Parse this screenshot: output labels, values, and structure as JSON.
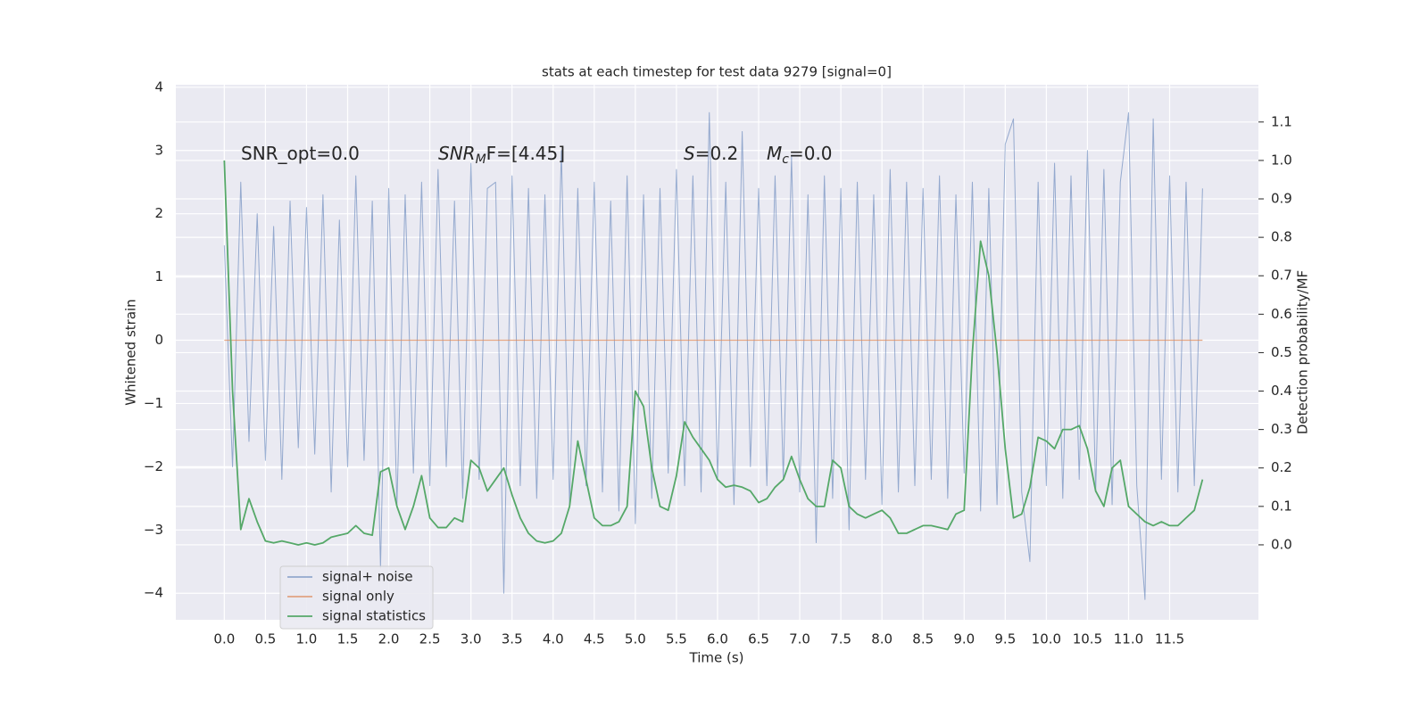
{
  "chart_data": {
    "type": "line",
    "title": "stats at each timestep for test data 9279 [signal=0]",
    "xlabel": "Time (s)",
    "ylabel": "Whitened strain",
    "y2label": "Detection probability/MF",
    "annotations": [
      {
        "base": "SNR_opt=0.0"
      },
      {
        "base": "SNR",
        "sub": "M",
        "tail": "F=[4.45]"
      },
      {
        "base": "S",
        "tail": "=0.2"
      },
      {
        "base": "M",
        "sub": "c",
        "tail": "=0.0"
      }
    ],
    "grid": true,
    "legend": "lower left",
    "xlim": [
      -0.59,
      12.58
    ],
    "ylim": [
      -4.42,
      4.04
    ],
    "y2lim": [
      -0.195,
      1.197
    ],
    "xticks": [
      {
        "value": 0,
        "label": "0.0"
      },
      0.5,
      {
        "value": 1,
        "label": "1.0"
      },
      1.5,
      {
        "value": 2,
        "label": "2.0"
      },
      2.5,
      {
        "value": 3,
        "label": "3.0"
      },
      3.5,
      {
        "value": 4,
        "label": "4.0"
      },
      4.5,
      {
        "value": 5,
        "label": "5.0"
      },
      5.5,
      {
        "value": 6,
        "label": "6.0"
      },
      6.5,
      {
        "value": 7,
        "label": "7.0"
      },
      7.5,
      {
        "value": 8,
        "label": "8.0"
      },
      8.5,
      {
        "value": 9,
        "label": "9.0"
      },
      9.5,
      {
        "value": 10,
        "label": "10.0"
      },
      10.5,
      {
        "value": 11,
        "label": "11.0"
      },
      11.5
    ],
    "yticks": [
      {
        "value": -4,
        "label": "−4"
      },
      {
        "value": -3,
        "label": "−3"
      },
      {
        "value": -2,
        "label": "−2"
      },
      {
        "value": -1,
        "label": "−1"
      },
      0,
      1,
      2,
      3,
      4
    ],
    "y2ticks": [
      {
        "value": 0,
        "label": "0.0"
      },
      0.1,
      0.2,
      0.3,
      0.4,
      0.5,
      0.6,
      0.7,
      0.8,
      0.9,
      {
        "value": 1,
        "label": "1.0"
      },
      1.1
    ],
    "x": [
      0,
      0.1,
      0.2,
      0.3,
      0.4,
      0.5,
      0.6,
      0.7,
      0.8,
      0.9,
      1,
      1.1,
      1.2,
      1.3,
      1.4,
      1.5,
      1.6,
      1.7,
      1.8,
      1.9,
      2,
      2.1,
      2.2,
      2.3,
      2.4,
      2.5,
      2.6,
      2.7,
      2.8,
      2.9,
      3,
      3.1,
      3.2,
      3.3,
      3.4,
      3.5,
      3.6,
      3.7,
      3.8,
      3.9,
      4,
      4.1,
      4.2,
      4.3,
      4.4,
      4.5,
      4.6,
      4.7,
      4.8,
      4.9,
      5,
      5.1,
      5.2,
      5.3,
      5.4,
      5.5,
      5.6,
      5.7,
      5.8,
      5.9,
      6,
      6.1,
      6.2,
      6.3,
      6.4,
      6.5,
      6.6,
      6.7,
      6.8,
      6.9,
      7,
      7.1,
      7.2,
      7.3,
      7.4,
      7.5,
      7.6,
      7.7,
      7.8,
      7.9,
      8,
      8.1,
      8.2,
      8.3,
      8.4,
      8.5,
      8.6,
      8.7,
      8.8,
      8.9,
      9,
      9.1,
      9.2,
      9.3,
      9.4,
      9.5,
      9.6,
      9.7,
      9.8,
      9.9,
      10,
      10.1,
      10.2,
      10.3,
      10.4,
      10.5,
      10.6,
      10.7,
      10.8,
      10.9,
      11,
      11.1,
      11.2,
      11.3,
      11.4,
      11.5,
      11.6,
      11.7,
      11.8,
      11.9
    ],
    "series": [
      {
        "name": "signal+ noise",
        "color": "#4c72b0",
        "values": [
          1.5,
          -2.0,
          2.5,
          -1.6,
          2.0,
          -1.9,
          1.8,
          -2.2,
          2.2,
          -1.7,
          2.1,
          -1.8,
          2.3,
          -2.4,
          1.9,
          -2.0,
          2.6,
          -1.9,
          2.2,
          -3.6,
          2.4,
          -2.6,
          2.3,
          -2.1,
          2.5,
          -2.3,
          2.7,
          -2.0,
          2.2,
          -2.5,
          2.8,
          -2.2,
          2.4,
          2.5,
          -4.0,
          2.6,
          -2.3,
          2.4,
          -2.5,
          2.3,
          -2.2,
          3.0,
          -2.6,
          2.4,
          -2.3,
          2.5,
          -2.4,
          2.2,
          -2.7,
          2.6,
          -2.9,
          2.3,
          -2.5,
          2.4,
          -2.1,
          2.7,
          -2.3,
          2.6,
          -2.4,
          3.6,
          -2.2,
          2.5,
          -2.6,
          3.3,
          -2.0,
          2.4,
          -2.3,
          2.6,
          -2.2,
          2.9,
          -2.4,
          2.3,
          -3.2,
          2.6,
          -2.5,
          2.4,
          -3.0,
          2.5,
          -2.2,
          2.3,
          -2.6,
          2.7,
          -2.4,
          2.5,
          -2.3,
          2.4,
          -2.2,
          2.6,
          -2.5,
          2.3,
          -2.1,
          2.5,
          -2.7,
          2.4,
          -2.6,
          3.1,
          3.5,
          -2.4,
          -3.5,
          2.5,
          -2.3,
          2.8,
          -2.5,
          2.6,
          -2.2,
          3.0,
          -2.4,
          2.7,
          -2.6,
          2.5,
          3.6,
          -2.3,
          -4.1,
          3.5,
          -2.2,
          2.6,
          -2.4,
          2.5,
          -2.3,
          2.4
        ]
      },
      {
        "name": "signal only",
        "color": "#dd8452",
        "x": [
          0,
          11.9
        ],
        "values": [
          0,
          0
        ]
      },
      {
        "name": "signal statistics",
        "color": "#55a868",
        "axis": "y2",
        "values": [
          1.0,
          0.4,
          0.04,
          0.12,
          0.06,
          0.01,
          0.005,
          0.01,
          0.005,
          0.0,
          0.005,
          0.0,
          0.005,
          0.02,
          0.025,
          0.03,
          0.05,
          0.03,
          0.025,
          0.19,
          0.2,
          0.1,
          0.04,
          0.1,
          0.18,
          0.07,
          0.045,
          0.045,
          0.07,
          0.06,
          0.22,
          0.2,
          0.14,
          0.17,
          0.2,
          0.13,
          0.07,
          0.03,
          0.01,
          0.005,
          0.01,
          0.03,
          0.1,
          0.27,
          0.17,
          0.07,
          0.05,
          0.05,
          0.06,
          0.1,
          0.4,
          0.36,
          0.2,
          0.1,
          0.09,
          0.18,
          0.32,
          0.28,
          0.25,
          0.22,
          0.17,
          0.15,
          0.155,
          0.15,
          0.14,
          0.11,
          0.12,
          0.15,
          0.17,
          0.23,
          0.17,
          0.12,
          0.1,
          0.1,
          0.22,
          0.2,
          0.1,
          0.08,
          0.07,
          0.08,
          0.09,
          0.07,
          0.03,
          0.03,
          0.04,
          0.05,
          0.05,
          0.045,
          0.04,
          0.08,
          0.09,
          0.5,
          0.79,
          0.7,
          0.5,
          0.25,
          0.07,
          0.08,
          0.15,
          0.28,
          0.27,
          0.25,
          0.3,
          0.3,
          0.31,
          0.25,
          0.14,
          0.1,
          0.2,
          0.22,
          0.1,
          0.08,
          0.06,
          0.05,
          0.06,
          0.05,
          0.05,
          0.07,
          0.09,
          0.17
        ]
      }
    ]
  }
}
